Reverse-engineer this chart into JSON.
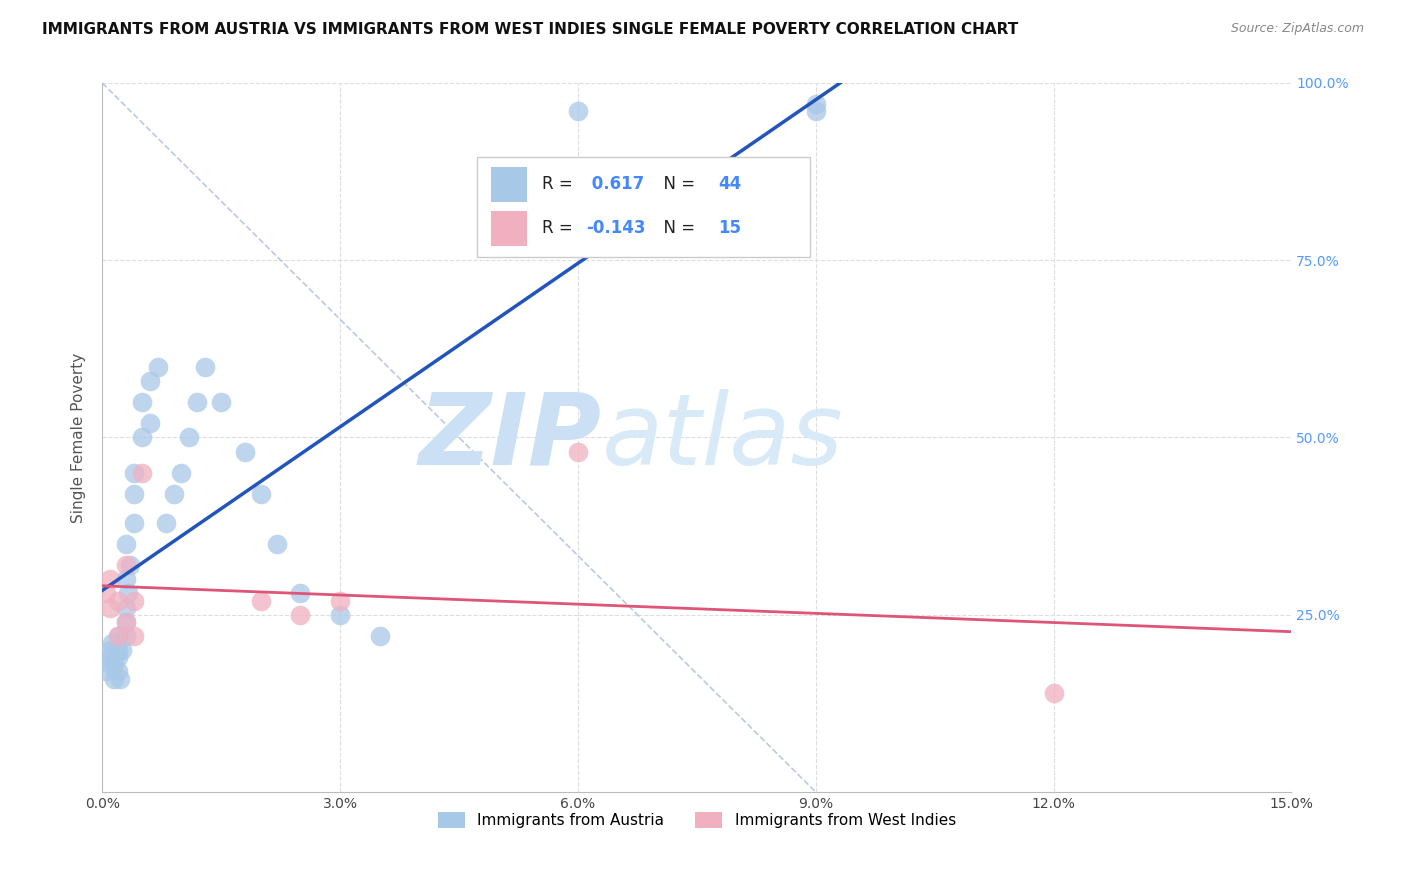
{
  "title": "IMMIGRANTS FROM AUSTRIA VS IMMIGRANTS FROM WEST INDIES SINGLE FEMALE POVERTY CORRELATION CHART",
  "source": "Source: ZipAtlas.com",
  "ylabel": "Single Female Poverty",
  "xlim": [
    0.0,
    0.15
  ],
  "ylim": [
    0.0,
    1.0
  ],
  "xtick_vals": [
    0.0,
    0.03,
    0.06,
    0.09,
    0.12,
    0.15
  ],
  "xtick_labels": [
    "0.0%",
    "3.0%",
    "6.0%",
    "9.0%",
    "12.0%",
    "15.0%"
  ],
  "ytick_vals": [
    0.0,
    0.25,
    0.5,
    0.75,
    1.0
  ],
  "ytick_labels": [
    "0.0%",
    "25.0%",
    "50.0%",
    "75.0%",
    "100.0%"
  ],
  "austria_color": "#a8c8e8",
  "west_indies_color": "#f0b0c0",
  "austria_line_color": "#2255bb",
  "west_indies_line_color": "#dd5577",
  "diag_line_color": "#aabbdd",
  "austria_R": 0.617,
  "austria_N": 44,
  "west_indies_R": -0.143,
  "west_indies_N": 15,
  "legend_label_austria": "Immigrants from Austria",
  "legend_label_west_indies": "Immigrants from West Indies",
  "austria_x": [
    0.0005,
    0.0008,
    0.001,
    0.001,
    0.0012,
    0.0015,
    0.0015,
    0.002,
    0.002,
    0.002,
    0.002,
    0.0022,
    0.0025,
    0.003,
    0.003,
    0.003,
    0.003,
    0.003,
    0.0032,
    0.0035,
    0.004,
    0.004,
    0.004,
    0.005,
    0.005,
    0.006,
    0.006,
    0.007,
    0.008,
    0.009,
    0.01,
    0.011,
    0.012,
    0.013,
    0.015,
    0.018,
    0.02,
    0.022,
    0.025,
    0.03,
    0.035,
    0.06,
    0.09,
    0.09
  ],
  "austria_y": [
    0.17,
    0.19,
    0.2,
    0.18,
    0.21,
    0.16,
    0.18,
    0.17,
    0.19,
    0.2,
    0.22,
    0.16,
    0.2,
    0.22,
    0.24,
    0.26,
    0.3,
    0.35,
    0.28,
    0.32,
    0.38,
    0.42,
    0.45,
    0.5,
    0.55,
    0.52,
    0.58,
    0.6,
    0.38,
    0.42,
    0.45,
    0.5,
    0.55,
    0.6,
    0.55,
    0.48,
    0.42,
    0.35,
    0.28,
    0.25,
    0.22,
    0.96,
    0.96,
    0.97
  ],
  "west_indies_x": [
    0.0005,
    0.001,
    0.001,
    0.002,
    0.002,
    0.003,
    0.003,
    0.004,
    0.004,
    0.005,
    0.02,
    0.025,
    0.03,
    0.06,
    0.12
  ],
  "west_indies_y": [
    0.28,
    0.26,
    0.3,
    0.22,
    0.27,
    0.24,
    0.32,
    0.22,
    0.27,
    0.45,
    0.27,
    0.25,
    0.27,
    0.48,
    0.14
  ],
  "background_color": "#ffffff",
  "grid_color": "#dddddd",
  "watermark_zip": "ZIP",
  "watermark_atlas": "atlas",
  "watermark_color": "#cce0f5",
  "title_fontsize": 11,
  "source_fontsize": 9,
  "axis_label_color": "#5599ff",
  "R_color": "#4488ff",
  "N_color": "#3366cc"
}
